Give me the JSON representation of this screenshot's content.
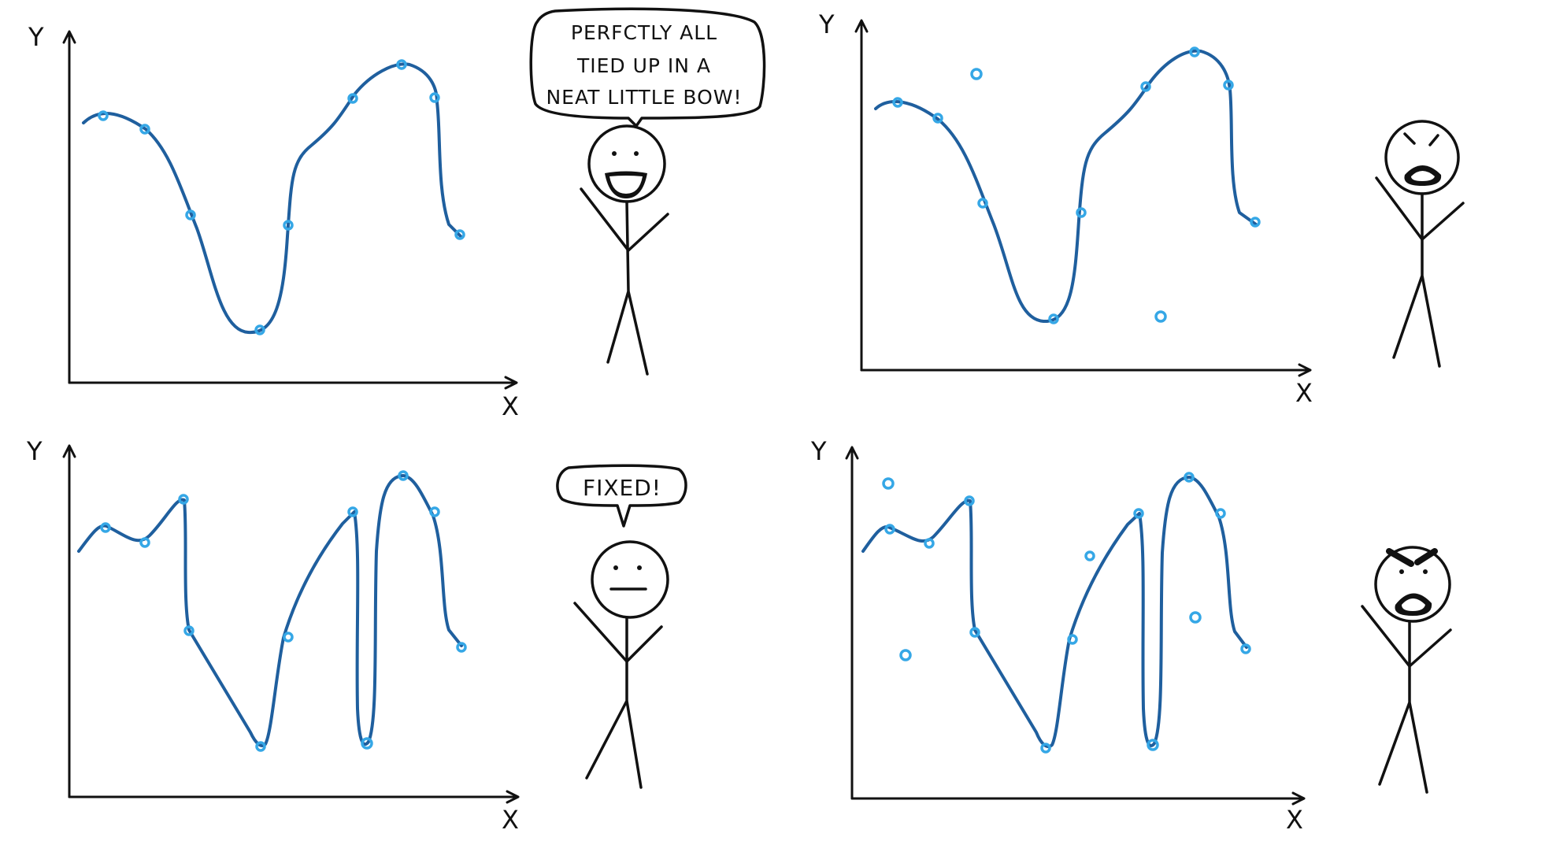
{
  "colors": {
    "curve": "#1f5f9e",
    "point": "#35a7e6",
    "ink": "#111111",
    "background": "#ffffff"
  },
  "axes": {
    "x_label": "X",
    "y_label": "Y"
  },
  "panels": [
    {
      "id": "top-left",
      "curve": "smooth fit",
      "speech": [
        "PERFCTLY ALL",
        "TIED UP IN A",
        "NEAT LITTLE BOW!"
      ],
      "mood": "happy"
    },
    {
      "id": "top-right",
      "curve": "smooth fit",
      "speech": [],
      "mood": "angry"
    },
    {
      "id": "bottom-left",
      "curve": "overfit",
      "speech": [
        "FIXED!"
      ],
      "mood": "neutral"
    },
    {
      "id": "bottom-right",
      "curve": "overfit",
      "speech": [],
      "mood": "furious"
    }
  ]
}
